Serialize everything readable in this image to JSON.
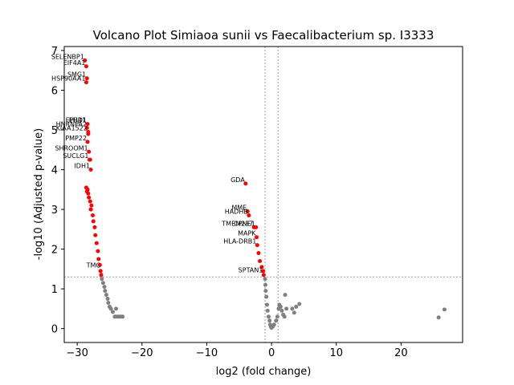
{
  "chart_data": {
    "type": "scatter",
    "title": "Volcano Plot Simiaoa sunii vs Faecalibacterium sp. I3333",
    "xlabel": "log2 (fold change)",
    "ylabel": "-log10 (Adjusted p-value)",
    "xlim": [
      -32,
      29.5
    ],
    "ylim": [
      -0.35,
      7.1
    ],
    "x_ticks": [
      -30,
      -20,
      -10,
      0,
      10,
      20
    ],
    "x_tick_labels": [
      "−30",
      "−20",
      "−10",
      "0",
      "10",
      "20"
    ],
    "y_ticks": [
      0,
      1,
      2,
      3,
      4,
      5,
      6,
      7
    ],
    "y_tick_labels": [
      "0",
      "1",
      "2",
      "3",
      "4",
      "5",
      "6",
      "7"
    ],
    "grid": false,
    "legend": "none",
    "colors": {
      "significant": "#ff0000",
      "not_significant": "#808080",
      "threshold_line": "#808080"
    },
    "thresholds": {
      "fold_change_lines_x": [
        -1,
        1
      ],
      "pvalue_line_y": 1.3
    },
    "series": [
      {
        "color": "#ff0000",
        "points": [
          [
            -28.8,
            6.75
          ],
          [
            -28.6,
            6.6
          ],
          [
            -28.5,
            6.3
          ],
          [
            -28.6,
            6.2
          ],
          [
            -28.4,
            5.15
          ],
          [
            -28.5,
            5.05
          ],
          [
            -28.3,
            4.95
          ],
          [
            -28.3,
            4.9
          ],
          [
            -28.4,
            4.7
          ],
          [
            -28.2,
            4.45
          ],
          [
            -28.1,
            4.25
          ],
          [
            -28.0,
            4.25
          ],
          [
            -27.9,
            4.0
          ],
          [
            -28.6,
            3.55
          ],
          [
            -28.4,
            3.5
          ],
          [
            -28.5,
            3.45
          ],
          [
            -28.3,
            3.4
          ],
          [
            -28.2,
            3.3
          ],
          [
            -28.0,
            3.2
          ],
          [
            -27.8,
            3.1
          ],
          [
            -27.9,
            3.0
          ],
          [
            -27.6,
            2.85
          ],
          [
            -27.5,
            2.7
          ],
          [
            -27.3,
            2.55
          ],
          [
            -27.2,
            2.35
          ],
          [
            -27.0,
            2.15
          ],
          [
            -26.8,
            1.95
          ],
          [
            -26.7,
            1.75
          ],
          [
            -26.5,
            1.6
          ],
          [
            -26.4,
            1.45
          ],
          [
            -26.3,
            1.35
          ],
          [
            -4.0,
            3.65
          ],
          [
            -3.7,
            2.95
          ],
          [
            -3.5,
            2.85
          ],
          [
            -2.7,
            2.55
          ],
          [
            -2.4,
            2.55
          ],
          [
            -2.3,
            2.3
          ],
          [
            -2.2,
            2.1
          ],
          [
            -2.0,
            1.9
          ],
          [
            -1.8,
            1.7
          ],
          [
            -1.5,
            1.55
          ],
          [
            -1.3,
            1.45
          ],
          [
            -1.2,
            1.35
          ]
        ]
      },
      {
        "color": "#808080",
        "points": [
          [
            -26.2,
            1.25
          ],
          [
            -26.0,
            1.15
          ],
          [
            -25.8,
            1.05
          ],
          [
            -25.7,
            0.95
          ],
          [
            -25.5,
            0.85
          ],
          [
            -25.3,
            0.75
          ],
          [
            -25.2,
            0.65
          ],
          [
            -25.0,
            0.55
          ],
          [
            -24.8,
            0.5
          ],
          [
            -24.0,
            0.5
          ],
          [
            -24.5,
            0.42
          ],
          [
            -24.2,
            0.3
          ],
          [
            -23.9,
            0.3
          ],
          [
            -23.6,
            0.3
          ],
          [
            -23.3,
            0.3
          ],
          [
            -23.0,
            0.3
          ],
          [
            -1.0,
            1.25
          ],
          [
            -0.95,
            1.1
          ],
          [
            -0.9,
            0.95
          ],
          [
            -0.8,
            0.8
          ],
          [
            -0.7,
            0.6
          ],
          [
            -0.6,
            0.45
          ],
          [
            -0.45,
            0.3
          ],
          [
            -0.3,
            0.2
          ],
          [
            -0.2,
            0.1
          ],
          [
            -0.1,
            0.05
          ],
          [
            0.0,
            0.02
          ],
          [
            0.2,
            0.05
          ],
          [
            0.4,
            0.1
          ],
          [
            0.7,
            0.2
          ],
          [
            0.9,
            0.3
          ],
          [
            1.1,
            0.5
          ],
          [
            1.2,
            0.6
          ],
          [
            1.4,
            0.55
          ],
          [
            1.6,
            0.45
          ],
          [
            1.8,
            0.35
          ],
          [
            2.0,
            0.3
          ],
          [
            2.3,
            0.5
          ],
          [
            2.1,
            0.85
          ],
          [
            3.2,
            0.5
          ],
          [
            3.5,
            0.4
          ],
          [
            3.8,
            0.55
          ],
          [
            4.3,
            0.62
          ],
          [
            25.8,
            0.28
          ],
          [
            26.7,
            0.48
          ]
        ]
      }
    ],
    "labels": [
      {
        "text": "SELENBP1",
        "x": -28.8,
        "y": 6.75
      },
      {
        "text": "EIF4A1",
        "x": -28.6,
        "y": 6.6
      },
      {
        "text": "SMG1",
        "x": -28.5,
        "y": 6.3
      },
      {
        "text": "HSP90AA1",
        "x": -28.6,
        "y": 6.2
      },
      {
        "text": "EHD1",
        "x": -28.4,
        "y": 5.15
      },
      {
        "text": "EPB41",
        "x": -28.5,
        "y": 5.15
      },
      {
        "text": "HNRNPA2",
        "x": -28.4,
        "y": 5.05
      },
      {
        "text": "KIAA1522",
        "x": -28.3,
        "y": 4.95
      },
      {
        "text": "PMP22",
        "x": -28.4,
        "y": 4.7
      },
      {
        "text": "SHROOM1",
        "x": -28.2,
        "y": 4.45
      },
      {
        "text": "SUCLG1",
        "x": -28.1,
        "y": 4.25
      },
      {
        "text": "IDH1",
        "x": -27.9,
        "y": 4.0
      },
      {
        "text": "GDA",
        "x": -4.0,
        "y": 3.65
      },
      {
        "text": "MME",
        "x": -3.7,
        "y": 2.95
      },
      {
        "text": "HADHB",
        "x": -3.5,
        "y": 2.85
      },
      {
        "text": "TMEM237",
        "x": -2.7,
        "y": 2.55
      },
      {
        "text": "CPNE1",
        "x": -2.4,
        "y": 2.55
      },
      {
        "text": "MAPK",
        "x": -2.3,
        "y": 2.3
      },
      {
        "text": "HLA-DRB1",
        "x": -2.2,
        "y": 2.1
      },
      {
        "text": "SPTAN1",
        "x": -1.2,
        "y": 1.38
      },
      {
        "text": "TMC",
        "x": -26.3,
        "y": 1.5
      }
    ]
  }
}
